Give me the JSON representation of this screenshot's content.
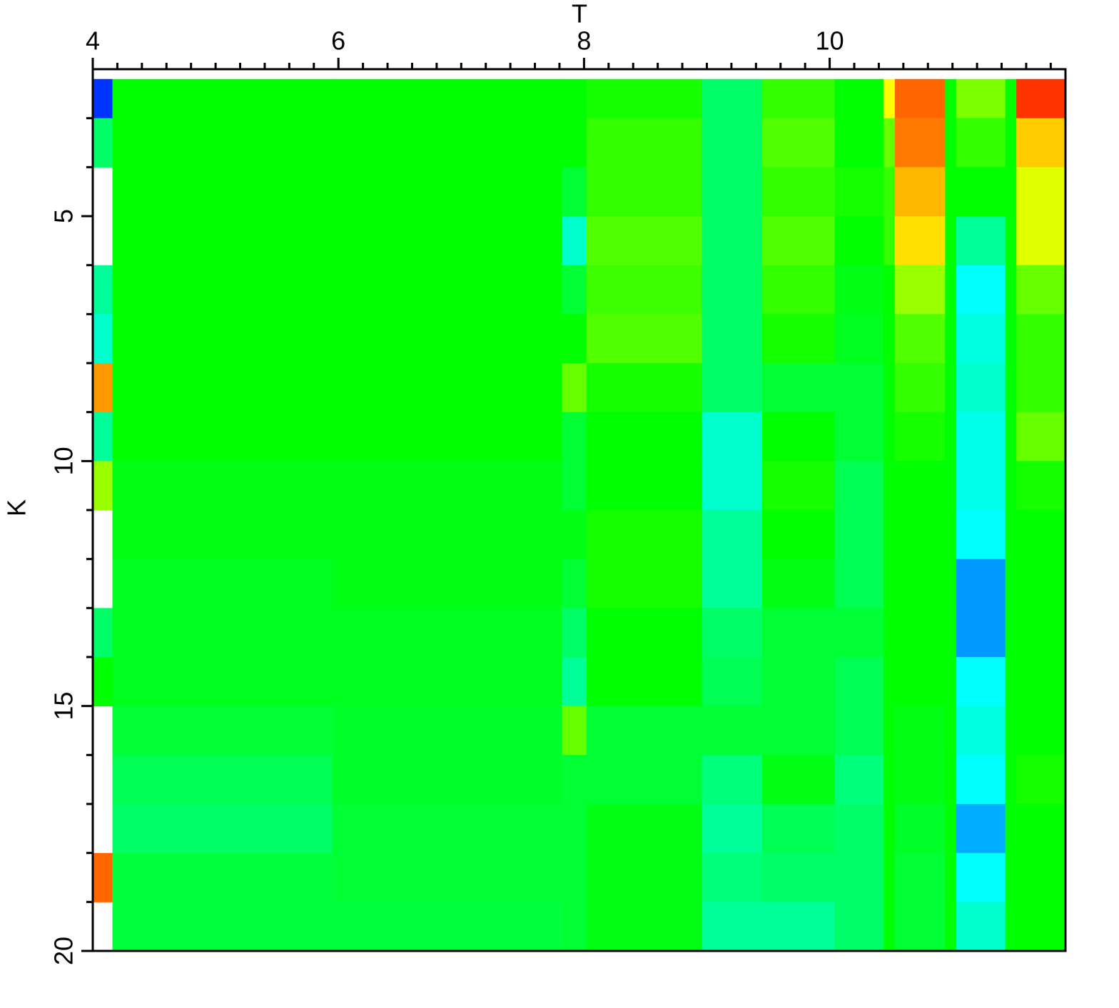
{
  "chart_data": {
    "type": "heatmap",
    "x_label": "T",
    "y_label": "K",
    "xlim": [
      4,
      11.92
    ],
    "ylim": [
      2,
      20
    ],
    "y_inverted": true,
    "xticks": [
      4,
      6,
      8,
      10
    ],
    "yticks": [
      5,
      10,
      15,
      20
    ],
    "xminorticks": [
      4.2,
      4.4,
      4.6,
      4.8,
      5,
      5.2,
      5.4,
      5.6,
      5.8,
      6.2,
      6.4,
      6.6,
      6.8,
      7,
      7.2,
      7.4,
      7.6,
      7.8,
      8.2,
      8.4,
      8.6,
      8.8,
      9,
      9.2,
      9.4,
      9.6,
      9.8,
      10.2,
      10.4,
      10.6,
      10.8,
      11,
      11.2,
      11.4,
      11.6,
      11.8
    ],
    "yminorticks": [
      3,
      4,
      6,
      7,
      8,
      9,
      11,
      12,
      13,
      14,
      16,
      17,
      18,
      19
    ],
    "xbins": [
      4,
      4.16,
      5.95,
      7.82,
      8.02,
      8.96,
      9.45,
      10.04,
      10.44,
      10.53,
      10.94,
      11.03,
      11.43,
      11.52,
      11.92
    ],
    "ybins": [
      2.2,
      3,
      4,
      5,
      6,
      7,
      8,
      9,
      10,
      11,
      12,
      13,
      14,
      15,
      16,
      17,
      18,
      19,
      20
    ],
    "zlim": [
      0,
      1
    ],
    "colormap": [
      "#0000ff",
      "#00ffff",
      "#00ff00",
      "#ffff00",
      "#ff0000"
    ],
    "values": [
      [
        0.05,
        0.5,
        0.5,
        0.5,
        0.52,
        0.4,
        0.55,
        0.5,
        0.75,
        0.9,
        0.5,
        0.62,
        0.5,
        0.95
      ],
      [
        0.4,
        0.5,
        0.5,
        0.5,
        0.55,
        0.4,
        0.58,
        0.5,
        0.6,
        0.88,
        0.5,
        0.55,
        0.5,
        0.8
      ],
      [
        null,
        0.5,
        0.5,
        0.45,
        0.55,
        0.4,
        0.55,
        0.52,
        0.55,
        0.82,
        0.5,
        0.5,
        0.5,
        0.72
      ],
      [
        null,
        0.5,
        0.5,
        0.3,
        0.58,
        0.4,
        0.58,
        0.5,
        0.55,
        0.78,
        0.5,
        0.35,
        0.5,
        0.72
      ],
      [
        0.35,
        0.5,
        0.5,
        0.45,
        0.56,
        0.4,
        0.55,
        0.48,
        0.5,
        0.65,
        0.5,
        0.25,
        0.5,
        0.6
      ],
      [
        0.3,
        0.5,
        0.5,
        0.5,
        0.58,
        0.4,
        0.52,
        0.47,
        0.5,
        0.58,
        0.5,
        0.28,
        0.5,
        0.55
      ],
      [
        0.85,
        0.5,
        0.5,
        0.6,
        0.52,
        0.4,
        0.45,
        0.45,
        0.5,
        0.55,
        0.5,
        0.3,
        0.5,
        0.55
      ],
      [
        0.35,
        0.5,
        0.5,
        0.45,
        0.5,
        0.3,
        0.5,
        0.45,
        0.5,
        0.52,
        0.5,
        0.27,
        0.5,
        0.6
      ],
      [
        0.65,
        0.48,
        0.48,
        0.45,
        0.5,
        0.3,
        0.52,
        0.42,
        0.5,
        0.5,
        0.5,
        0.27,
        0.5,
        0.52
      ],
      [
        null,
        0.48,
        0.48,
        0.48,
        0.52,
        0.35,
        0.5,
        0.42,
        0.5,
        0.5,
        0.5,
        0.25,
        0.5,
        0.5
      ],
      [
        null,
        0.47,
        0.48,
        0.45,
        0.52,
        0.35,
        0.48,
        0.42,
        0.5,
        0.5,
        0.5,
        0.15,
        0.5,
        0.5
      ],
      [
        0.4,
        0.47,
        0.47,
        0.4,
        0.5,
        0.4,
        0.45,
        0.45,
        0.5,
        0.5,
        0.5,
        0.15,
        0.5,
        0.5
      ],
      [
        0.5,
        0.47,
        0.47,
        0.35,
        0.5,
        0.42,
        0.45,
        0.42,
        0.5,
        0.5,
        0.5,
        0.25,
        0.5,
        0.5
      ],
      [
        null,
        0.45,
        0.46,
        0.6,
        0.45,
        0.45,
        0.45,
        0.42,
        0.5,
        0.48,
        0.5,
        0.28,
        0.5,
        0.5
      ],
      [
        null,
        0.42,
        0.46,
        0.45,
        0.45,
        0.38,
        0.48,
        0.38,
        0.5,
        0.48,
        0.5,
        0.25,
        0.5,
        0.52
      ],
      [
        null,
        0.4,
        0.45,
        0.45,
        0.48,
        0.35,
        0.42,
        0.4,
        0.5,
        0.46,
        0.5,
        0.17,
        0.5,
        0.5
      ],
      [
        0.9,
        0.44,
        0.45,
        0.45,
        0.48,
        0.38,
        0.4,
        0.4,
        0.5,
        0.45,
        0.5,
        0.25,
        0.5,
        0.5
      ],
      [
        null,
        0.44,
        0.44,
        0.45,
        0.48,
        0.35,
        0.35,
        0.4,
        0.5,
        0.45,
        0.5,
        0.3,
        0.5,
        0.5
      ]
    ]
  }
}
